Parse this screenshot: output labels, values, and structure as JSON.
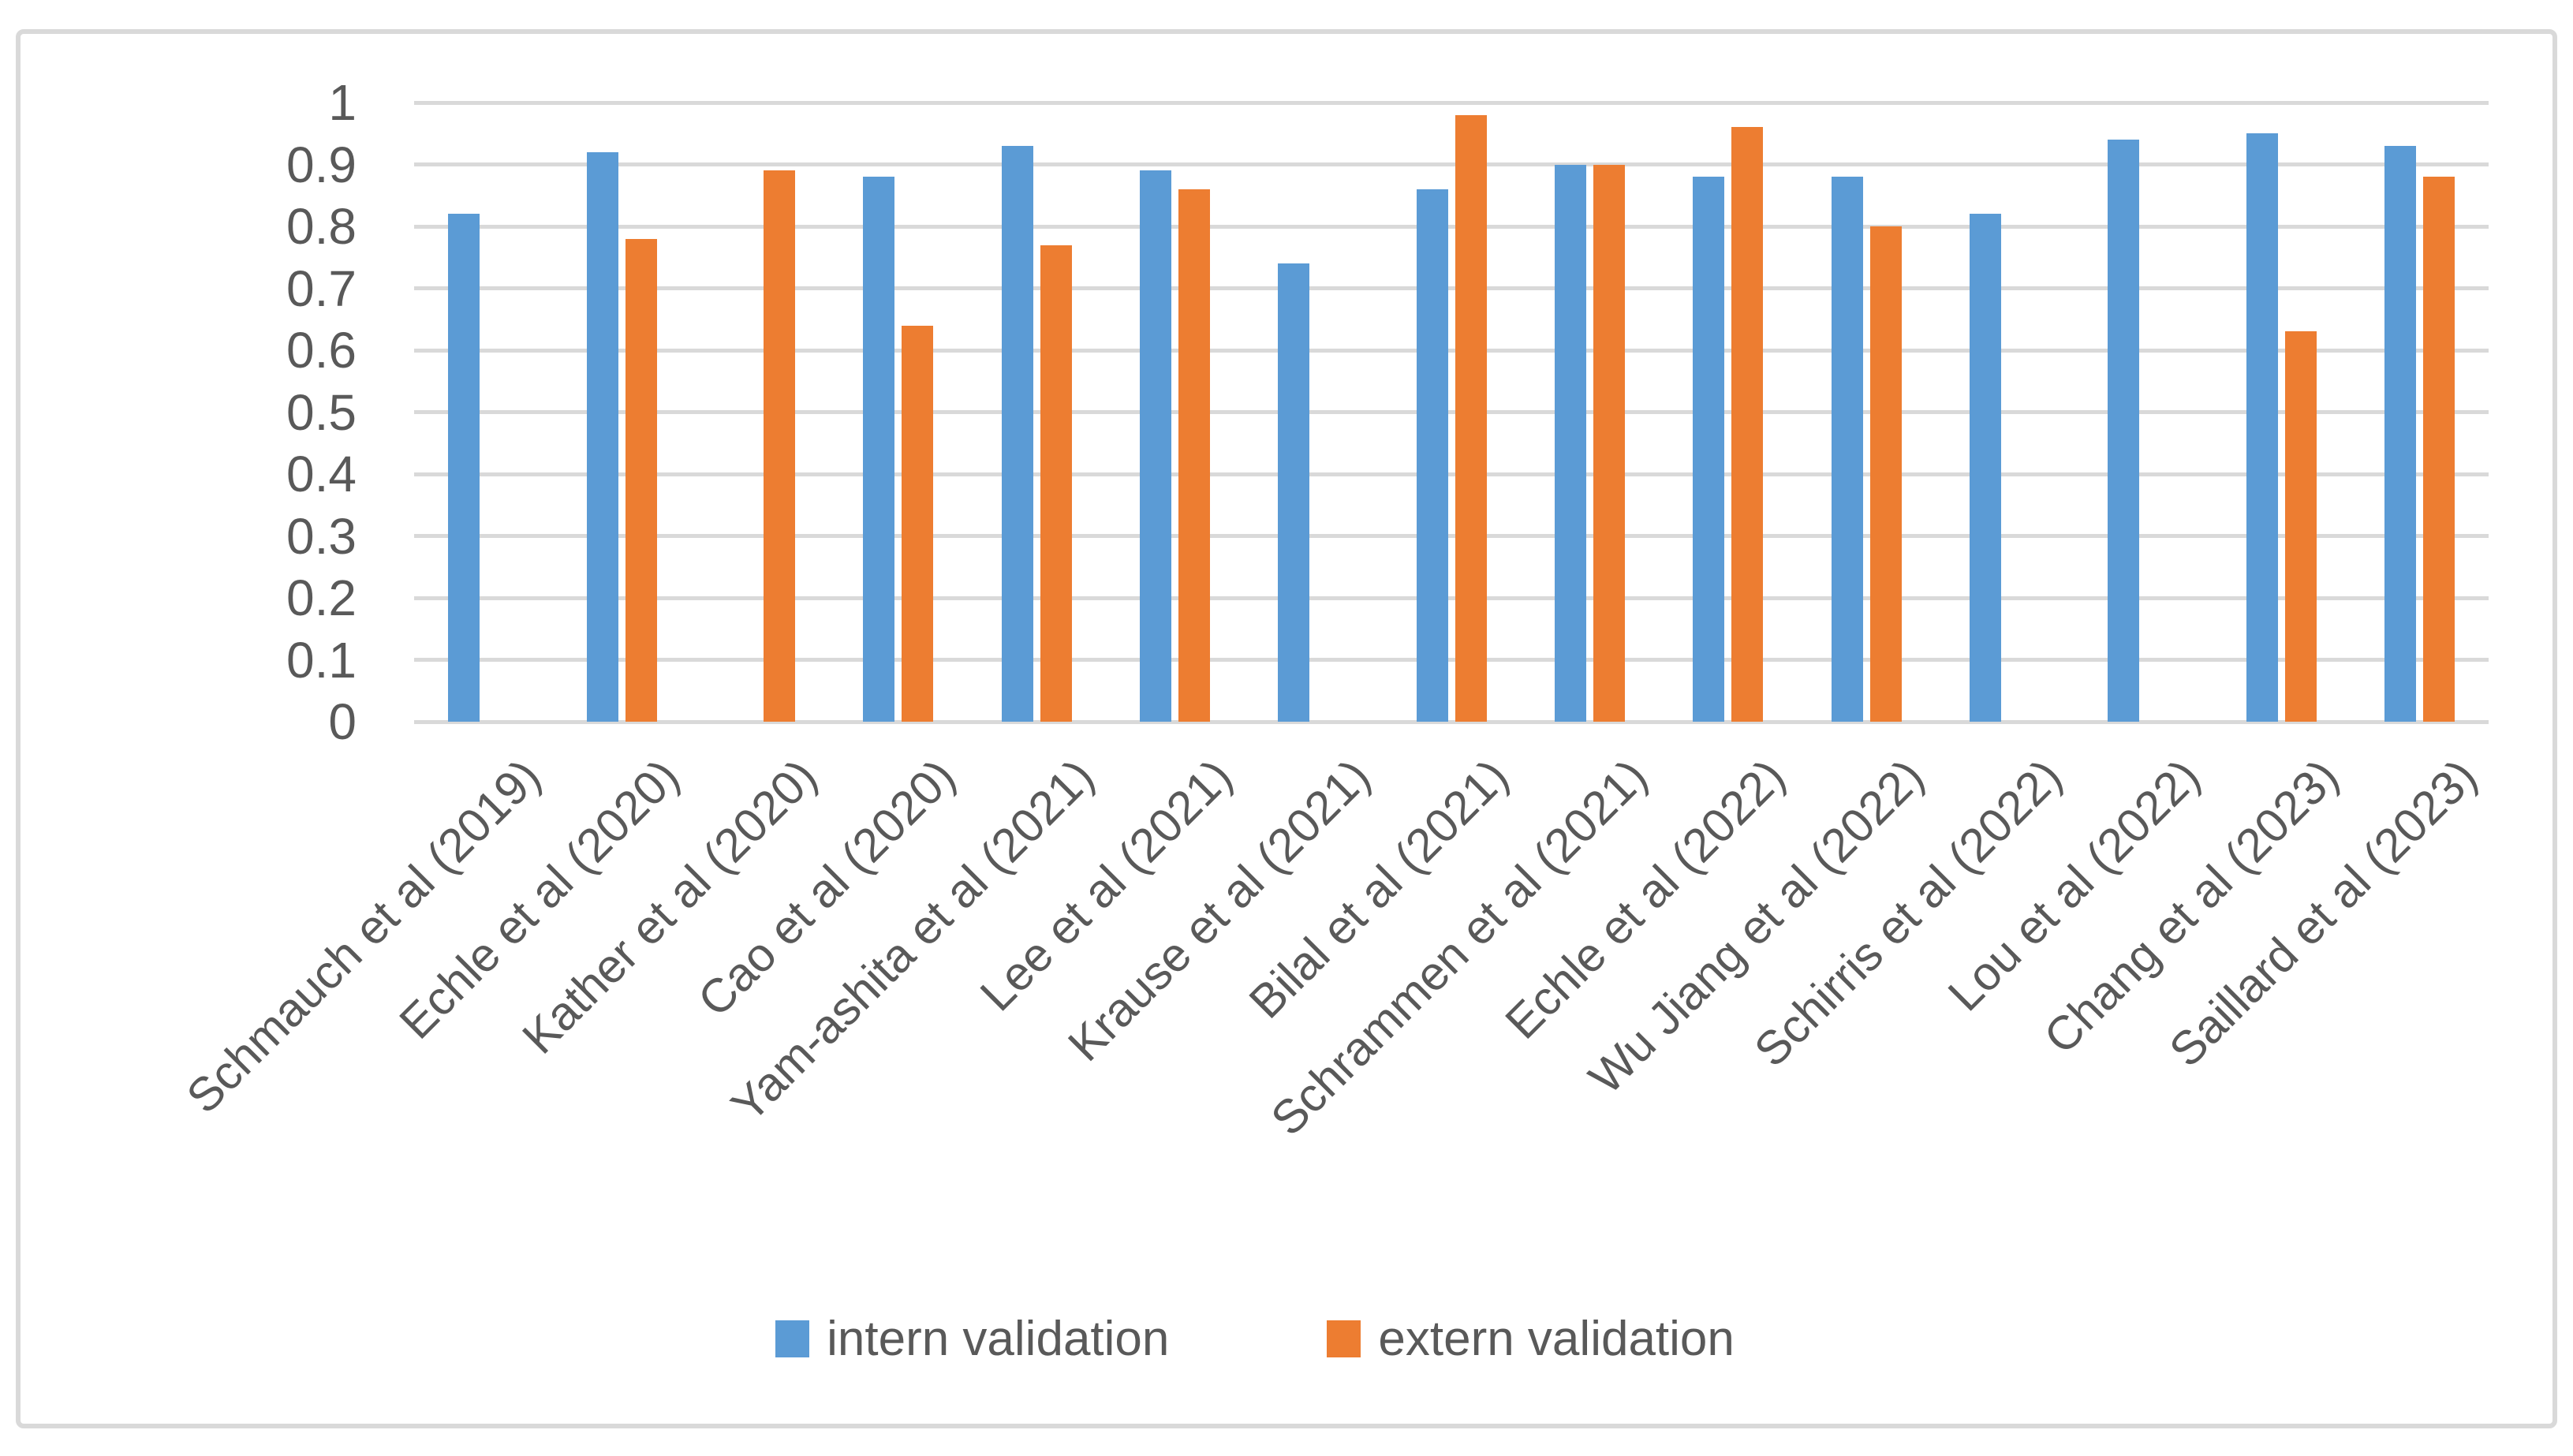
{
  "chart_data": {
    "type": "bar",
    "title": "",
    "xlabel": "",
    "ylabel": "",
    "categories": [
      "Schmauch et al (2019)",
      "Echle et al (2020)",
      "Kather et al (2020)",
      "Cao et al (2020)",
      "Yam-ashita et al (2021)",
      "Lee et al (2021)",
      "Krause et al (2021)",
      "Bilal et al (2021)",
      "Schrammen et al (2021)",
      "Echle et al (2022)",
      "Wu Jiang et al (2022)",
      "Schirris et al (2022)",
      "Lou et al (2022)",
      "Chang et al (2023)",
      "Saillard et al (2023)"
    ],
    "series": [
      {
        "name": "intern validation",
        "color": "#5B9BD5",
        "values": [
          0.82,
          0.92,
          null,
          0.88,
          0.93,
          0.89,
          0.74,
          0.86,
          0.9,
          0.88,
          0.88,
          0.82,
          0.94,
          0.95,
          0.93
        ]
      },
      {
        "name": "extern validation",
        "color": "#ED7D31",
        "values": [
          null,
          0.78,
          0.89,
          0.64,
          0.77,
          0.86,
          null,
          0.98,
          0.9,
          0.96,
          0.8,
          null,
          null,
          0.63,
          0.88
        ]
      }
    ],
    "ylim": [
      0,
      1
    ],
    "ytick_step": 0.1,
    "ytick_labels": [
      "0",
      "0.1",
      "0.2",
      "0.3",
      "0.4",
      "0.5",
      "0.6",
      "0.7",
      "0.8",
      "0.9",
      "1"
    ],
    "grid": true,
    "gridline_color": "#D9D9D9",
    "axis_text_color": "#595959",
    "legend_position": "bottom"
  }
}
